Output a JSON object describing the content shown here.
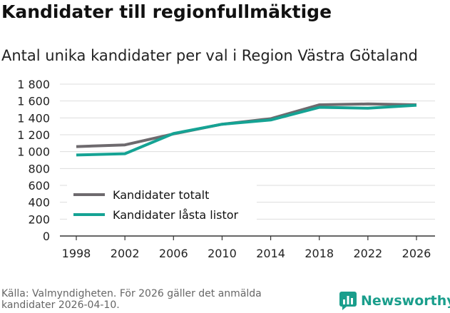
{
  "title": "Kandidater till regionfullmäktige",
  "subtitle": "Antal unika kandidater per val i Region Västra Götaland",
  "source": "Källa: Valmyndigheten. För 2026 gäller det anmälda kandidater 2026-04-10.",
  "brand": "Newsworthy",
  "colors": {
    "totalt": "#6e6a6e",
    "lasta": "#15a394",
    "grid": "#dddddd",
    "axis": "#333333",
    "brand": "#1a9e8c"
  },
  "chart_data": {
    "type": "line",
    "x": [
      1998,
      2002,
      2006,
      2010,
      2014,
      2018,
      2022,
      2026
    ],
    "x_tick_labels": [
      "1998",
      "2002",
      "2006",
      "2010",
      "2014",
      "2018",
      "2022",
      "2026"
    ],
    "ylim": [
      0,
      1800
    ],
    "y_ticks": [
      0,
      200,
      400,
      600,
      800,
      1000,
      1200,
      1400,
      1600,
      1800
    ],
    "y_tick_labels": [
      "0",
      "200",
      "400",
      "600",
      "800",
      "1 000",
      "1 200",
      "1 400",
      "1 600",
      "1 800"
    ],
    "grid": true,
    "legend_position": "bottom-left",
    "series": [
      {
        "name": "Kandidater totalt",
        "color_key": "totalt",
        "values": [
          1060,
          1080,
          1210,
          1325,
          1390,
          1555,
          1565,
          1555
        ]
      },
      {
        "name": "Kandidater låsta listor",
        "color_key": "lasta",
        "values": [
          960,
          975,
          1215,
          1325,
          1375,
          1525,
          1515,
          1550
        ]
      }
    ]
  }
}
